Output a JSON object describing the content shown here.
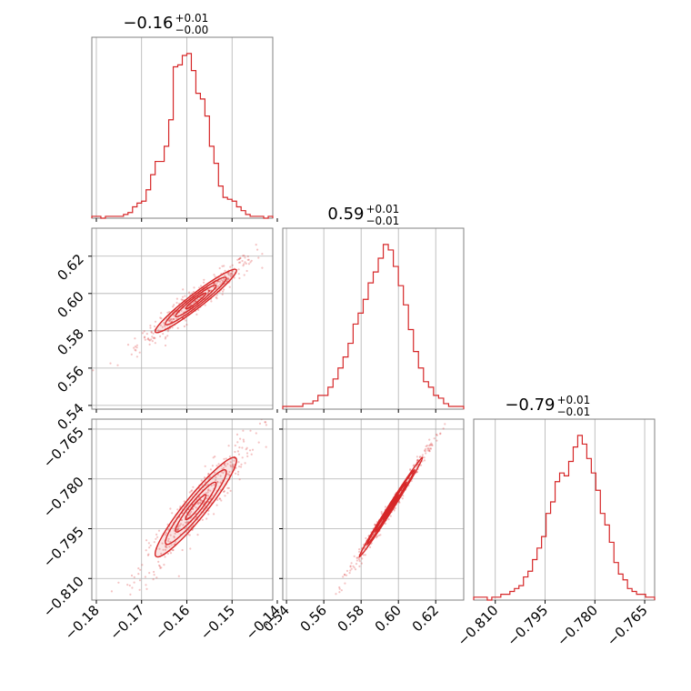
{
  "chart_data": {
    "type": "corner",
    "color": "#d62728",
    "grid": true,
    "parameters": [
      {
        "median_text": "−0.16",
        "plus_text": "+0.01",
        "minus_text": "−0.00",
        "range": [
          -0.181,
          -0.141
        ],
        "ticks": [
          -0.18,
          -0.17,
          -0.16,
          -0.15,
          -0.14
        ],
        "tick_labels": [
          "−0.18",
          "−0.17",
          "−0.16",
          "−0.15",
          "−0.14"
        ],
        "histogram": [
          1,
          1,
          0,
          1,
          1,
          1,
          1,
          2,
          3,
          6,
          8,
          9,
          15,
          23,
          30,
          30,
          38,
          52,
          80,
          81,
          86,
          87,
          78,
          66,
          63,
          54,
          38,
          29,
          17,
          11,
          10,
          9,
          6,
          4,
          2,
          1,
          1,
          1,
          0,
          1
        ]
      },
      {
        "median_text": "0.59",
        "plus_text": "+0.01",
        "minus_text": "−0.01",
        "range": [
          0.538,
          0.635
        ],
        "ticks": [
          0.54,
          0.56,
          0.58,
          0.6,
          0.62
        ],
        "tick_labels": [
          "0.54",
          "0.56",
          "0.58",
          "0.60",
          "0.62"
        ],
        "histogram": [
          1,
          1,
          1,
          1,
          2,
          2,
          3,
          5,
          5,
          8,
          11,
          15,
          19,
          24,
          31,
          35,
          40,
          46,
          50,
          55,
          60,
          58,
          52,
          45,
          38,
          29,
          21,
          15,
          10,
          8,
          5,
          4,
          2,
          1,
          1,
          1
        ]
      },
      {
        "median_text": "−0.79",
        "plus_text": "+0.01",
        "minus_text": "−0.01",
        "range": [
          -0.8165,
          -0.762
        ],
        "ticks": [
          -0.81,
          -0.795,
          -0.78,
          -0.765
        ],
        "tick_labels": [
          "−0.810",
          "−0.795",
          "−0.780",
          "−0.765"
        ],
        "histogram": [
          1,
          1,
          1,
          0,
          1,
          1,
          2,
          2,
          3,
          4,
          5,
          8,
          10,
          14,
          18,
          22,
          30,
          34,
          41,
          44,
          43,
          48,
          53,
          57,
          54,
          49,
          44,
          38,
          30,
          26,
          20,
          13,
          9,
          7,
          4,
          3,
          2,
          2,
          1,
          1
        ]
      }
    ],
    "joint": [
      {
        "x_param": 0,
        "y_param": 1,
        "mean": [
          -0.158,
          0.596
        ],
        "sd": [
          0.0045,
          0.0085
        ],
        "rho": 0.96
      },
      {
        "x_param": 0,
        "y_param": 2,
        "mean": [
          -0.158,
          -0.7885
        ],
        "sd": [
          0.0045,
          0.0075
        ],
        "rho": 0.94
      },
      {
        "x_param": 1,
        "y_param": 2,
        "mean": [
          0.596,
          -0.7885
        ],
        "sd": [
          0.0085,
          0.0075
        ],
        "rho": 0.995
      }
    ],
    "contour_levels_sigma": [
      0.5,
      1.0,
      1.5,
      2.0
    ]
  }
}
